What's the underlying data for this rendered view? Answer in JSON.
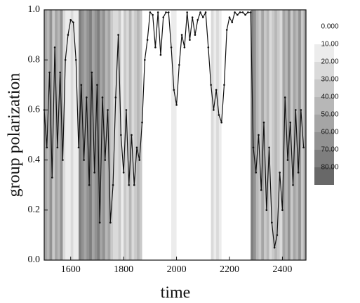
{
  "chart_data": {
    "type": "line",
    "x_label": "time",
    "y_label": "group polarization",
    "xlim": [
      1500,
      2489
    ],
    "ylim": [
      0,
      1
    ],
    "xticks": [
      1600,
      1800,
      2000,
      2200,
      2400
    ],
    "yticks": [
      {
        "value": 0,
        "label": "0.0"
      },
      0.2,
      0.4,
      0.6,
      0.8,
      {
        "value": 1,
        "label": "1.0"
      }
    ],
    "color": "#111111",
    "x": [
      1500,
      1510,
      1520,
      1530,
      1540,
      1550,
      1560,
      1570,
      1580,
      1590,
      1600,
      1610,
      1620,
      1630,
      1640,
      1650,
      1660,
      1670,
      1680,
      1690,
      1700,
      1710,
      1720,
      1730,
      1740,
      1750,
      1760,
      1770,
      1780,
      1790,
      1800,
      1810,
      1820,
      1830,
      1840,
      1850,
      1860,
      1870,
      1880,
      1890,
      1900,
      1910,
      1920,
      1930,
      1940,
      1950,
      1960,
      1970,
      1980,
      1990,
      2000,
      2010,
      2020,
      2030,
      2040,
      2050,
      2060,
      2070,
      2080,
      2090,
      2100,
      2110,
      2120,
      2130,
      2140,
      2150,
      2160,
      2170,
      2180,
      2190,
      2200,
      2210,
      2220,
      2230,
      2240,
      2250,
      2260,
      2270,
      2280,
      2290,
      2300,
      2310,
      2320,
      2330,
      2340,
      2350,
      2360,
      2370,
      2380,
      2390,
      2400,
      2410,
      2420,
      2430,
      2440,
      2450,
      2460,
      2470,
      2480
    ],
    "values": [
      0.6,
      0.45,
      0.75,
      0.33,
      0.85,
      0.45,
      0.75,
      0.4,
      0.8,
      0.9,
      0.96,
      0.95,
      0.8,
      0.45,
      0.7,
      0.4,
      0.65,
      0.3,
      0.75,
      0.35,
      0.7,
      0.15,
      0.65,
      0.4,
      0.6,
      0.15,
      0.3,
      0.65,
      0.9,
      0.5,
      0.35,
      0.6,
      0.3,
      0.5,
      0.3,
      0.45,
      0.4,
      0.55,
      0.8,
      0.88,
      0.99,
      0.98,
      0.85,
      0.99,
      0.82,
      0.97,
      0.99,
      0.99,
      0.85,
      0.68,
      0.62,
      0.78,
      0.9,
      0.85,
      0.99,
      0.88,
      0.97,
      0.9,
      0.96,
      0.99,
      0.97,
      0.99,
      0.85,
      0.7,
      0.6,
      0.68,
      0.58,
      0.55,
      0.7,
      0.92,
      0.97,
      0.95,
      0.99,
      0.98,
      0.99,
      0.99,
      0.98,
      0.99,
      0.99,
      0.45,
      0.35,
      0.5,
      0.28,
      0.55,
      0.2,
      0.45,
      0.15,
      0.05,
      0.1,
      0.35,
      0.2,
      0.65,
      0.4,
      0.55,
      0.3,
      0.6,
      0.35,
      0.6,
      0.45
    ],
    "background_levels": [
      50,
      40,
      60,
      30,
      50,
      40,
      60,
      20,
      10,
      10,
      20,
      10,
      10,
      70,
      60,
      50,
      60,
      70,
      50,
      60,
      70,
      50,
      60,
      40,
      50,
      30,
      20,
      20,
      30,
      10,
      30,
      20,
      40,
      20,
      30,
      40,
      30,
      0,
      0,
      0,
      0,
      0,
      0,
      0,
      0,
      0,
      0,
      0,
      10,
      10,
      0,
      0,
      0,
      0,
      0,
      0,
      0,
      0,
      0,
      0,
      0,
      0,
      0,
      20,
      10,
      20,
      10,
      0,
      0,
      0,
      0,
      0,
      0,
      0,
      0,
      0,
      0,
      0,
      70,
      60,
      40,
      30,
      50,
      30,
      40,
      20,
      30,
      40,
      30,
      20,
      50,
      40,
      60,
      30,
      50,
      40,
      60,
      30,
      50
    ],
    "colorbar_ticks": [
      {
        "value": 0,
        "label": "0.000"
      },
      {
        "value": 10,
        "label": "10.00"
      },
      {
        "value": 20,
        "label": "20.00"
      },
      {
        "value": 30,
        "label": "30.00"
      },
      {
        "value": 40,
        "label": "40.00"
      },
      {
        "value": 50,
        "label": "50.00"
      },
      {
        "value": 60,
        "label": "60.00"
      },
      {
        "value": 70,
        "label": "70.00"
      },
      {
        "value": 80,
        "label": "80.00"
      }
    ],
    "colorbar_colors": [
      "#ffffff",
      "#ececec",
      "#dadada",
      "#c9c9c9",
      "#b7b7b7",
      "#a5a5a5",
      "#929292",
      "#7e7e7e",
      "#686868"
    ]
  }
}
